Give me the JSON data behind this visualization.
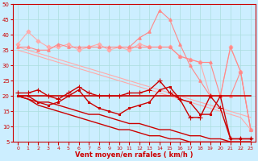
{
  "background_color": "#cceeff",
  "grid_color": "#aadddd",
  "xlabel": "Vent moyen/en rafales ( km/h )",
  "xlabel_color": "#cc0000",
  "tick_color": "#cc0000",
  "xlim": [
    -0.5,
    23.5
  ],
  "ylim": [
    5,
    50
  ],
  "yticks": [
    5,
    10,
    15,
    20,
    25,
    30,
    35,
    40,
    45,
    50
  ],
  "xticks": [
    0,
    1,
    2,
    3,
    4,
    5,
    6,
    7,
    8,
    9,
    10,
    11,
    12,
    13,
    14,
    15,
    16,
    17,
    18,
    19,
    20,
    21,
    22,
    23
  ],
  "lines": [
    {
      "x": [
        0,
        1,
        2,
        3,
        4,
        5,
        6,
        7,
        8,
        9,
        10,
        11,
        12,
        13,
        14,
        15,
        16,
        17,
        18,
        19,
        20,
        21,
        22,
        23
      ],
      "y": [
        37,
        41,
        38,
        36,
        36,
        37,
        35,
        36,
        37,
        35,
        36,
        35,
        37,
        36,
        36,
        36,
        33,
        32,
        31,
        20,
        20,
        36,
        28,
        9
      ],
      "color": "#ffaaaa",
      "marker": "D",
      "markersize": 2.5,
      "linewidth": 0.8,
      "zorder": 2
    },
    {
      "x": [
        0,
        1,
        2,
        3,
        4,
        5,
        6,
        7,
        8,
        9,
        10,
        11,
        12,
        13,
        14,
        15,
        16,
        17,
        18,
        19,
        20,
        21,
        22,
        23
      ],
      "y": [
        36,
        35,
        34,
        33,
        32,
        31,
        30,
        29,
        28,
        27,
        26,
        25,
        24,
        23,
        22,
        21,
        20,
        19,
        18,
        17,
        16,
        15,
        14,
        13
      ],
      "color": "#ffaaaa",
      "marker": null,
      "markersize": 0,
      "linewidth": 0.8,
      "zorder": 2
    },
    {
      "x": [
        0,
        1,
        2,
        3,
        4,
        5,
        6,
        7,
        8,
        9,
        10,
        11,
        12,
        13,
        14,
        15,
        16,
        17,
        18,
        19,
        20,
        21,
        22,
        23
      ],
      "y": [
        35,
        34,
        33,
        32,
        31,
        30,
        29,
        28,
        27,
        26,
        25,
        24,
        23,
        22,
        21,
        20,
        19,
        18,
        17,
        16,
        15,
        14,
        13,
        9
      ],
      "color": "#ffaaaa",
      "marker": null,
      "markersize": 0,
      "linewidth": 0.8,
      "zorder": 2
    },
    {
      "x": [
        0,
        1,
        2,
        3,
        4,
        5,
        6,
        7,
        8,
        9,
        10,
        11,
        12,
        13,
        14,
        15,
        16,
        17,
        18,
        19,
        20,
        21,
        22,
        23
      ],
      "y": [
        36,
        36,
        35,
        35,
        37,
        36,
        36,
        36,
        36,
        36,
        36,
        36,
        36,
        36,
        36,
        36,
        33,
        32,
        31,
        31,
        20,
        36,
        28,
        9
      ],
      "color": "#ff8888",
      "marker": "^",
      "markersize": 2.5,
      "linewidth": 0.8,
      "zorder": 3
    },
    {
      "x": [
        11,
        12,
        13,
        14,
        15,
        16,
        17,
        18,
        19,
        20,
        21,
        22,
        23
      ],
      "y": [
        36,
        39,
        41,
        48,
        45,
        37,
        30,
        25,
        20,
        20,
        20,
        28,
        9
      ],
      "color": "#ff8888",
      "marker": "^",
      "markersize": 2.5,
      "linewidth": 0.8,
      "zorder": 3
    },
    {
      "x": [
        0,
        1,
        2,
        3,
        4,
        5,
        6,
        7,
        8,
        9,
        10,
        11,
        12,
        13,
        14,
        15,
        16,
        17,
        18,
        19,
        20,
        21,
        22,
        23
      ],
      "y": [
        21,
        21,
        22,
        20,
        19,
        21,
        23,
        21,
        20,
        20,
        20,
        21,
        21,
        22,
        25,
        21,
        19,
        13,
        13,
        20,
        16,
        6,
        6,
        6
      ],
      "color": "#cc0000",
      "marker": "+",
      "markersize": 4,
      "linewidth": 1.0,
      "zorder": 4
    },
    {
      "x": [
        0,
        1,
        2,
        3,
        4,
        5,
        6,
        7,
        8,
        9,
        10,
        11,
        12,
        13,
        14,
        15,
        16,
        17,
        18,
        19,
        20,
        21,
        22,
        23
      ],
      "y": [
        20,
        20,
        18,
        17,
        18,
        20,
        22,
        18,
        16,
        15,
        14,
        16,
        17,
        18,
        22,
        23,
        19,
        18,
        14,
        14,
        20,
        6,
        6,
        6
      ],
      "color": "#cc0000",
      "marker": "s",
      "markersize": 2,
      "linewidth": 1.0,
      "zorder": 4
    },
    {
      "x": [
        0,
        1,
        2,
        3,
        4,
        5,
        6,
        7,
        8,
        9,
        10,
        11,
        12,
        13,
        14,
        15,
        16,
        17,
        18,
        19,
        20,
        21,
        22,
        23
      ],
      "y": [
        20,
        20,
        20,
        20,
        20,
        20,
        20,
        20,
        20,
        20,
        20,
        20,
        20,
        20,
        20,
        20,
        20,
        20,
        20,
        20,
        20,
        20,
        20,
        20
      ],
      "color": "#cc0000",
      "marker": null,
      "markersize": 0,
      "linewidth": 1.2,
      "zorder": 3
    },
    {
      "x": [
        0,
        1,
        2,
        3,
        4,
        5,
        6,
        7,
        8,
        9,
        10,
        11,
        12,
        13,
        14,
        15,
        16,
        17,
        18,
        19,
        20,
        21,
        22,
        23
      ],
      "y": [
        20,
        19,
        18,
        18,
        17,
        16,
        15,
        14,
        14,
        13,
        12,
        11,
        11,
        10,
        9,
        9,
        8,
        7,
        7,
        6,
        6,
        5,
        5,
        5
      ],
      "color": "#cc0000",
      "marker": null,
      "markersize": 0,
      "linewidth": 1.0,
      "zorder": 3
    },
    {
      "x": [
        0,
        1,
        2,
        3,
        4,
        5,
        6,
        7,
        8,
        9,
        10,
        11,
        12,
        13,
        14,
        15,
        16,
        17,
        18,
        19,
        20,
        21,
        22,
        23
      ],
      "y": [
        20,
        19,
        17,
        16,
        15,
        14,
        13,
        12,
        11,
        10,
        9,
        9,
        8,
        7,
        7,
        6,
        6,
        5,
        5,
        5,
        5,
        5,
        5,
        5
      ],
      "color": "#cc0000",
      "marker": null,
      "markersize": 0,
      "linewidth": 1.0,
      "zorder": 3
    }
  ]
}
